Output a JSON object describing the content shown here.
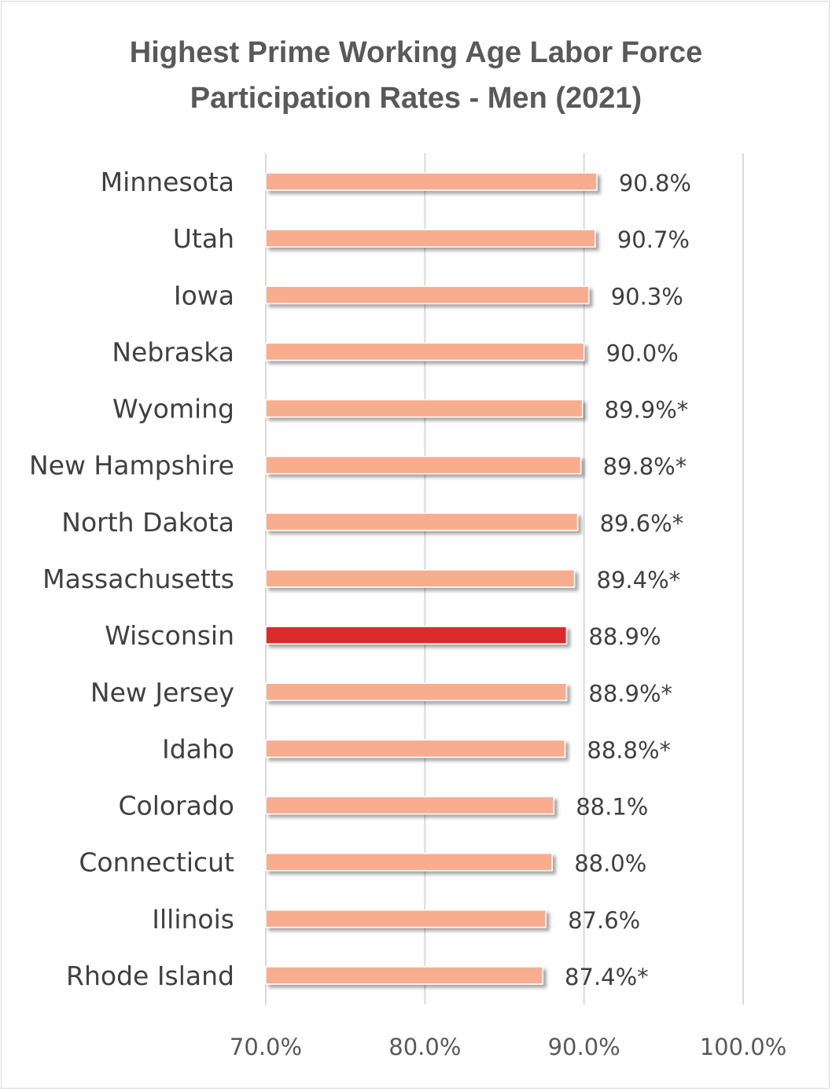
{
  "chart_data": {
    "type": "bar",
    "orientation": "horizontal",
    "title_line1": "Highest Prime Working Age Labor Force",
    "title_line2": "Participation Rates - Men (2021)",
    "categories": [
      "Minnesota",
      "Utah",
      "Iowa",
      "Nebraska",
      "Wyoming",
      "New Hampshire",
      "North Dakota",
      "Massachusetts",
      "Wisconsin",
      "New Jersey",
      "Idaho",
      "Colorado",
      "Connecticut",
      "Illinois",
      "Rhode Island"
    ],
    "values": [
      90.8,
      90.7,
      90.3,
      90.0,
      89.9,
      89.8,
      89.6,
      89.4,
      88.9,
      88.9,
      88.8,
      88.1,
      88.0,
      87.6,
      87.4
    ],
    "value_labels": [
      "90.8%",
      "90.7%",
      "90.3%",
      "90.0%",
      "89.9%*",
      "89.8%*",
      "89.6%*",
      "89.4%*",
      "88.9%",
      "88.9%*",
      "88.8%*",
      "88.1%",
      "88.0%",
      "87.6%",
      "87.4%*"
    ],
    "highlight_category": "Wisconsin",
    "xlim": [
      70,
      100
    ],
    "x_ticks": [
      70,
      80,
      90,
      100
    ],
    "x_tick_labels": [
      "70.0%",
      "80.0%",
      "90.0%",
      "100.0%"
    ],
    "grid": "vertical",
    "legend": "none",
    "colors": {
      "bar": "#f9ad8f",
      "highlight": "#dc2c2c",
      "grid": "#d9d9d9",
      "text": "#404040"
    }
  }
}
